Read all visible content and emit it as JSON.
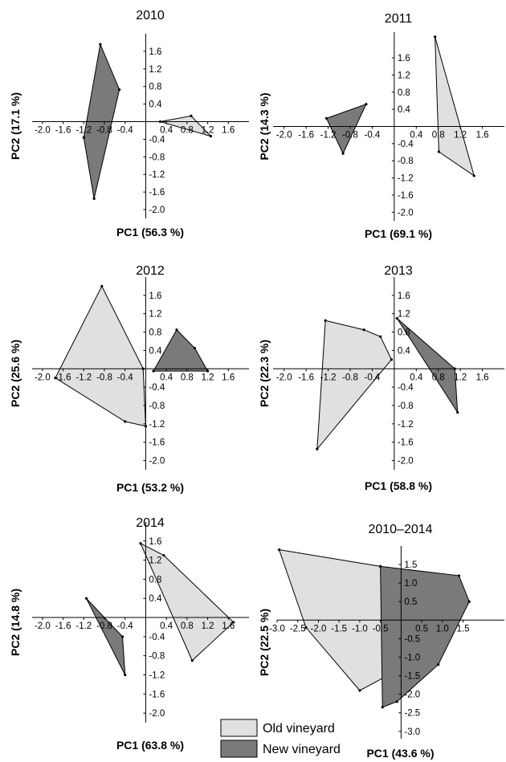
{
  "legend": {
    "items": [
      {
        "name": "Old vineyard",
        "color": "#e0e0e0"
      },
      {
        "name": "New vineyard",
        "color": "#7a7a7a"
      }
    ]
  },
  "chart_data": [
    {
      "type": "hull",
      "title": "2010",
      "xlabel": "PC1 (56.3 %)",
      "ylabel": "PC2 (17.1 %)",
      "xlim": [
        -2.2,
        2.0
      ],
      "ylim": [
        -2.2,
        2.0
      ],
      "xticks": [
        {
          "value": -2,
          "label": "-2.0"
        },
        -1.6,
        -1.2,
        -0.8,
        -0.4,
        0.4,
        0.8,
        1.2,
        1.6
      ],
      "yticks": [
        1.6,
        1.2,
        0.8,
        0.4,
        -0.4,
        -0.8,
        -1.2,
        -1.6,
        {
          "value": -2,
          "label": "-2.0"
        }
      ],
      "series": [
        {
          "x": [
            0.28,
            0.88,
            1.26
          ],
          "y": [
            0.0,
            0.13,
            -0.33
          ]
        },
        {
          "x": [
            -0.88,
            -0.51,
            -1.0,
            -1.2
          ],
          "y": [
            1.76,
            0.73,
            -1.75,
            -0.36
          ]
        }
      ]
    },
    {
      "type": "hull",
      "title": "2011",
      "xlabel": "PC1 (69.1 %)",
      "ylabel": "PC2 (14.3 %)",
      "xlim": [
        -2.2,
        2.0
      ],
      "ylim": [
        -2.2,
        2.2
      ],
      "xticks": [
        {
          "value": -2,
          "label": "-2.0"
        },
        -1.6,
        -1.2,
        -0.8,
        -0.4,
        0.4,
        0.8,
        1.2,
        1.6
      ],
      "yticks": [
        1.6,
        1.2,
        0.8,
        0.4,
        -0.4,
        -0.8,
        -1.2,
        -1.6,
        {
          "value": -2,
          "label": "-2.0"
        }
      ],
      "series": [
        {
          "x": [
            0.74,
            1.45,
            0.81
          ],
          "y": [
            2.09,
            -1.15,
            -0.59
          ]
        },
        {
          "x": [
            -1.23,
            -0.51,
            -0.93
          ],
          "y": [
            0.19,
            0.52,
            -0.63
          ]
        }
      ]
    },
    {
      "type": "hull",
      "title": "2012",
      "xlabel": "PC1 (53.2 %)",
      "ylabel": "PC2 (25.6 %)",
      "xlim": [
        -2.2,
        2.0
      ],
      "ylim": [
        -2.2,
        2.0
      ],
      "xticks": [
        {
          "value": -2,
          "label": "-2.0"
        },
        -1.6,
        -1.2,
        -0.8,
        -0.4,
        0.4,
        0.8,
        1.2,
        1.6
      ],
      "yticks": [
        1.6,
        1.2,
        0.8,
        0.4,
        -0.4,
        -0.8,
        -1.2,
        -1.6,
        {
          "value": -2,
          "label": "-2.0"
        }
      ],
      "series": [
        {
          "x": [
            -0.85,
            -0.05,
            0.0,
            -0.4,
            -1.75
          ],
          "y": [
            1.8,
            0.0,
            -1.25,
            -1.15,
            -0.2
          ]
        },
        {
          "x": [
            0.15,
            0.6,
            0.95,
            1.2
          ],
          "y": [
            -0.05,
            0.85,
            0.45,
            -0.05
          ]
        }
      ]
    },
    {
      "type": "hull",
      "title": "2013",
      "xlabel": "PC1 (58.8 %)",
      "ylabel": "PC2 (22.3 %)",
      "xlim": [
        -2.2,
        2.0
      ],
      "ylim": [
        -2.2,
        2.0
      ],
      "xticks": [
        {
          "value": -2,
          "label": "-2.0"
        },
        -1.6,
        -1.2,
        -0.8,
        -0.4,
        0.4,
        0.8,
        1.2,
        1.6
      ],
      "yticks": [
        1.6,
        1.2,
        0.8,
        0.4,
        -0.4,
        -0.8,
        -1.2,
        -1.6,
        {
          "value": -2,
          "label": "-2.0"
        }
      ],
      "series": [
        {
          "x": [
            -1.25,
            -0.55,
            -0.25,
            -0.05,
            -1.4
          ],
          "y": [
            1.05,
            0.85,
            0.7,
            0.2,
            -1.75
          ]
        },
        {
          "x": [
            0.05,
            1.1,
            1.15
          ],
          "y": [
            1.1,
            0.0,
            -0.95
          ]
        }
      ]
    },
    {
      "type": "hull",
      "title": "2014",
      "xlabel": "PC1 (63.8 %)",
      "ylabel": "PC2 (14.8 %)",
      "xlim": [
        -2.2,
        2.0
      ],
      "ylim": [
        -2.2,
        2.0
      ],
      "xticks": [
        {
          "value": -2,
          "label": "-2.0"
        },
        -1.6,
        -1.2,
        -0.8,
        -0.4,
        0.4,
        0.8,
        1.2,
        1.6
      ],
      "yticks": [
        1.6,
        1.2,
        0.8,
        0.4,
        -0.4,
        -0.8,
        -1.2,
        -1.6,
        {
          "value": -2,
          "label": "-2.0"
        }
      ],
      "series": [
        {
          "x": [
            -0.1,
            0.35,
            1.7,
            0.9
          ],
          "y": [
            1.55,
            1.3,
            -0.1,
            -0.9
          ]
        },
        {
          "x": [
            -1.15,
            -0.45,
            -0.4
          ],
          "y": [
            0.4,
            -0.4,
            -1.2
          ]
        }
      ]
    },
    {
      "type": "hull",
      "title": "2010–2014",
      "xlabel": "PC1 (43.6 %)",
      "ylabel": "PC2 (22.5 %)",
      "xlim": [
        -3.0,
        2.5
      ],
      "ylim": [
        -3.2,
        2.0
      ],
      "xticks": [
        {
          "value": -3,
          "label": "-3.0"
        },
        -2.5,
        {
          "value": -2,
          "label": "-2.0"
        },
        -1.5,
        {
          "value": -1,
          "label": "-1.0"
        },
        -0.5,
        0.5,
        {
          "value": 1,
          "label": "1.0"
        },
        1.5
      ],
      "yticks": [
        1.5,
        {
          "value": 1,
          "label": "1.0"
        },
        0.5,
        -0.5,
        {
          "value": -1,
          "label": "-1.0"
        },
        -1.5,
        {
          "value": -2,
          "label": "-2.0"
        },
        -2.5,
        {
          "value": -3,
          "label": "-3.0"
        }
      ],
      "series": [
        {
          "x": [
            -2.95,
            -0.5,
            0.4,
            0.0,
            -1.0,
            -2.3
          ],
          "y": [
            1.9,
            1.45,
            0.8,
            -1.3,
            -1.9,
            -0.2
          ]
        },
        {
          "x": [
            -0.5,
            1.4,
            1.65,
            0.9,
            -0.1,
            -0.45
          ],
          "y": [
            1.45,
            1.2,
            0.5,
            -1.2,
            -2.2,
            -2.35
          ]
        }
      ]
    }
  ]
}
